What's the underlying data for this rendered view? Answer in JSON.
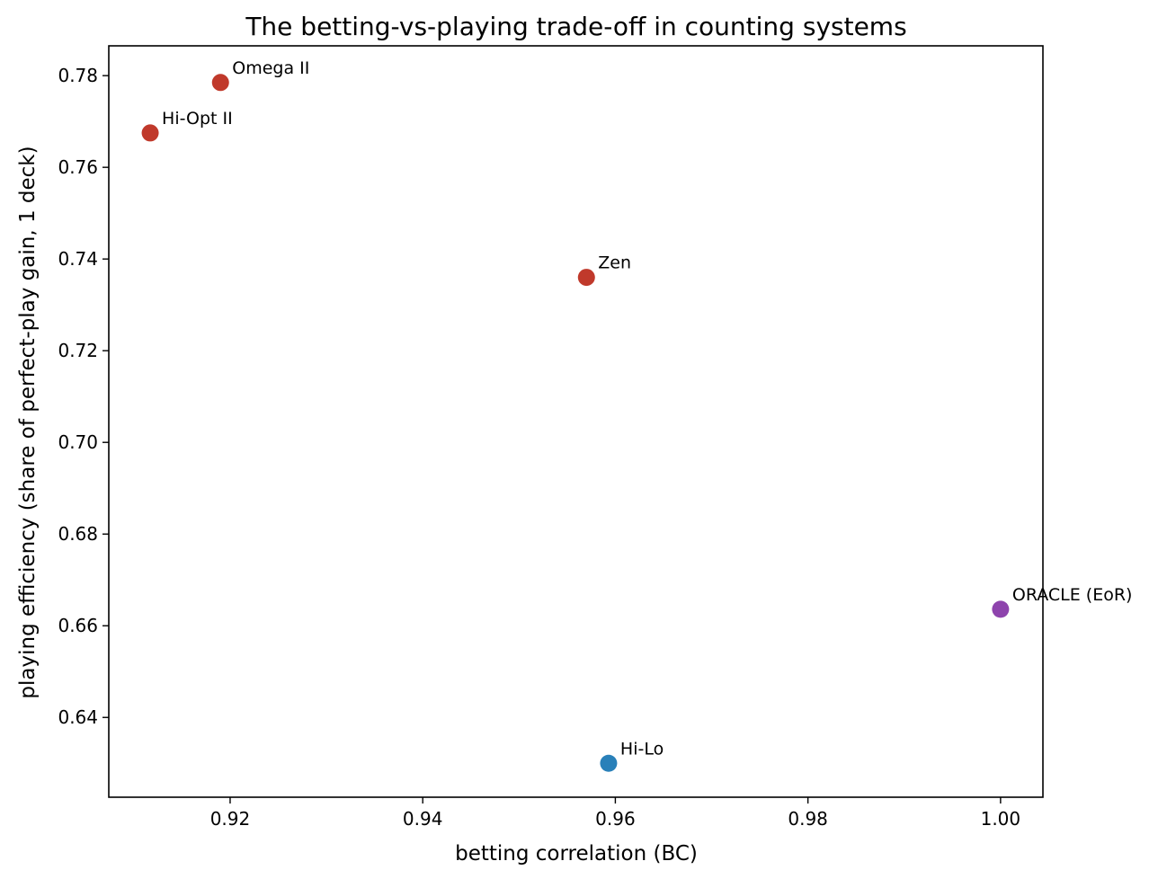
{
  "chart_data": {
    "type": "scatter",
    "title": "The betting-vs-playing trade-off in counting systems",
    "xlabel": "betting correlation (BC)",
    "ylabel": "playing efficiency (share of perfect-play gain, 1 deck)",
    "xlim": [
      0.9074,
      1.0044
    ],
    "ylim": [
      0.6226,
      0.7865
    ],
    "xticks": [
      0.92,
      0.94,
      0.96,
      0.98,
      1.0
    ],
    "xtick_labels": [
      "0.92",
      "0.94",
      "0.96",
      "0.98",
      "1.00"
    ],
    "yticks": [
      0.64,
      0.66,
      0.68,
      0.7,
      0.72,
      0.74,
      0.76,
      0.78
    ],
    "ytick_labels": [
      "0.64",
      "0.66",
      "0.68",
      "0.70",
      "0.72",
      "0.74",
      "0.76",
      "0.78"
    ],
    "grid": false,
    "points": [
      {
        "label": "Omega II",
        "x": 0.919,
        "y": 0.7785,
        "color": "#c0392b"
      },
      {
        "label": "Hi-Opt II",
        "x": 0.9117,
        "y": 0.7675,
        "color": "#c0392b"
      },
      {
        "label": "Zen",
        "x": 0.957,
        "y": 0.736,
        "color": "#c0392b"
      },
      {
        "label": "ORACLE (EoR)",
        "x": 1.0,
        "y": 0.6636,
        "color": "#8e44ad"
      },
      {
        "label": "Hi-Lo",
        "x": 0.9593,
        "y": 0.63,
        "color": "#2980b9"
      }
    ]
  }
}
